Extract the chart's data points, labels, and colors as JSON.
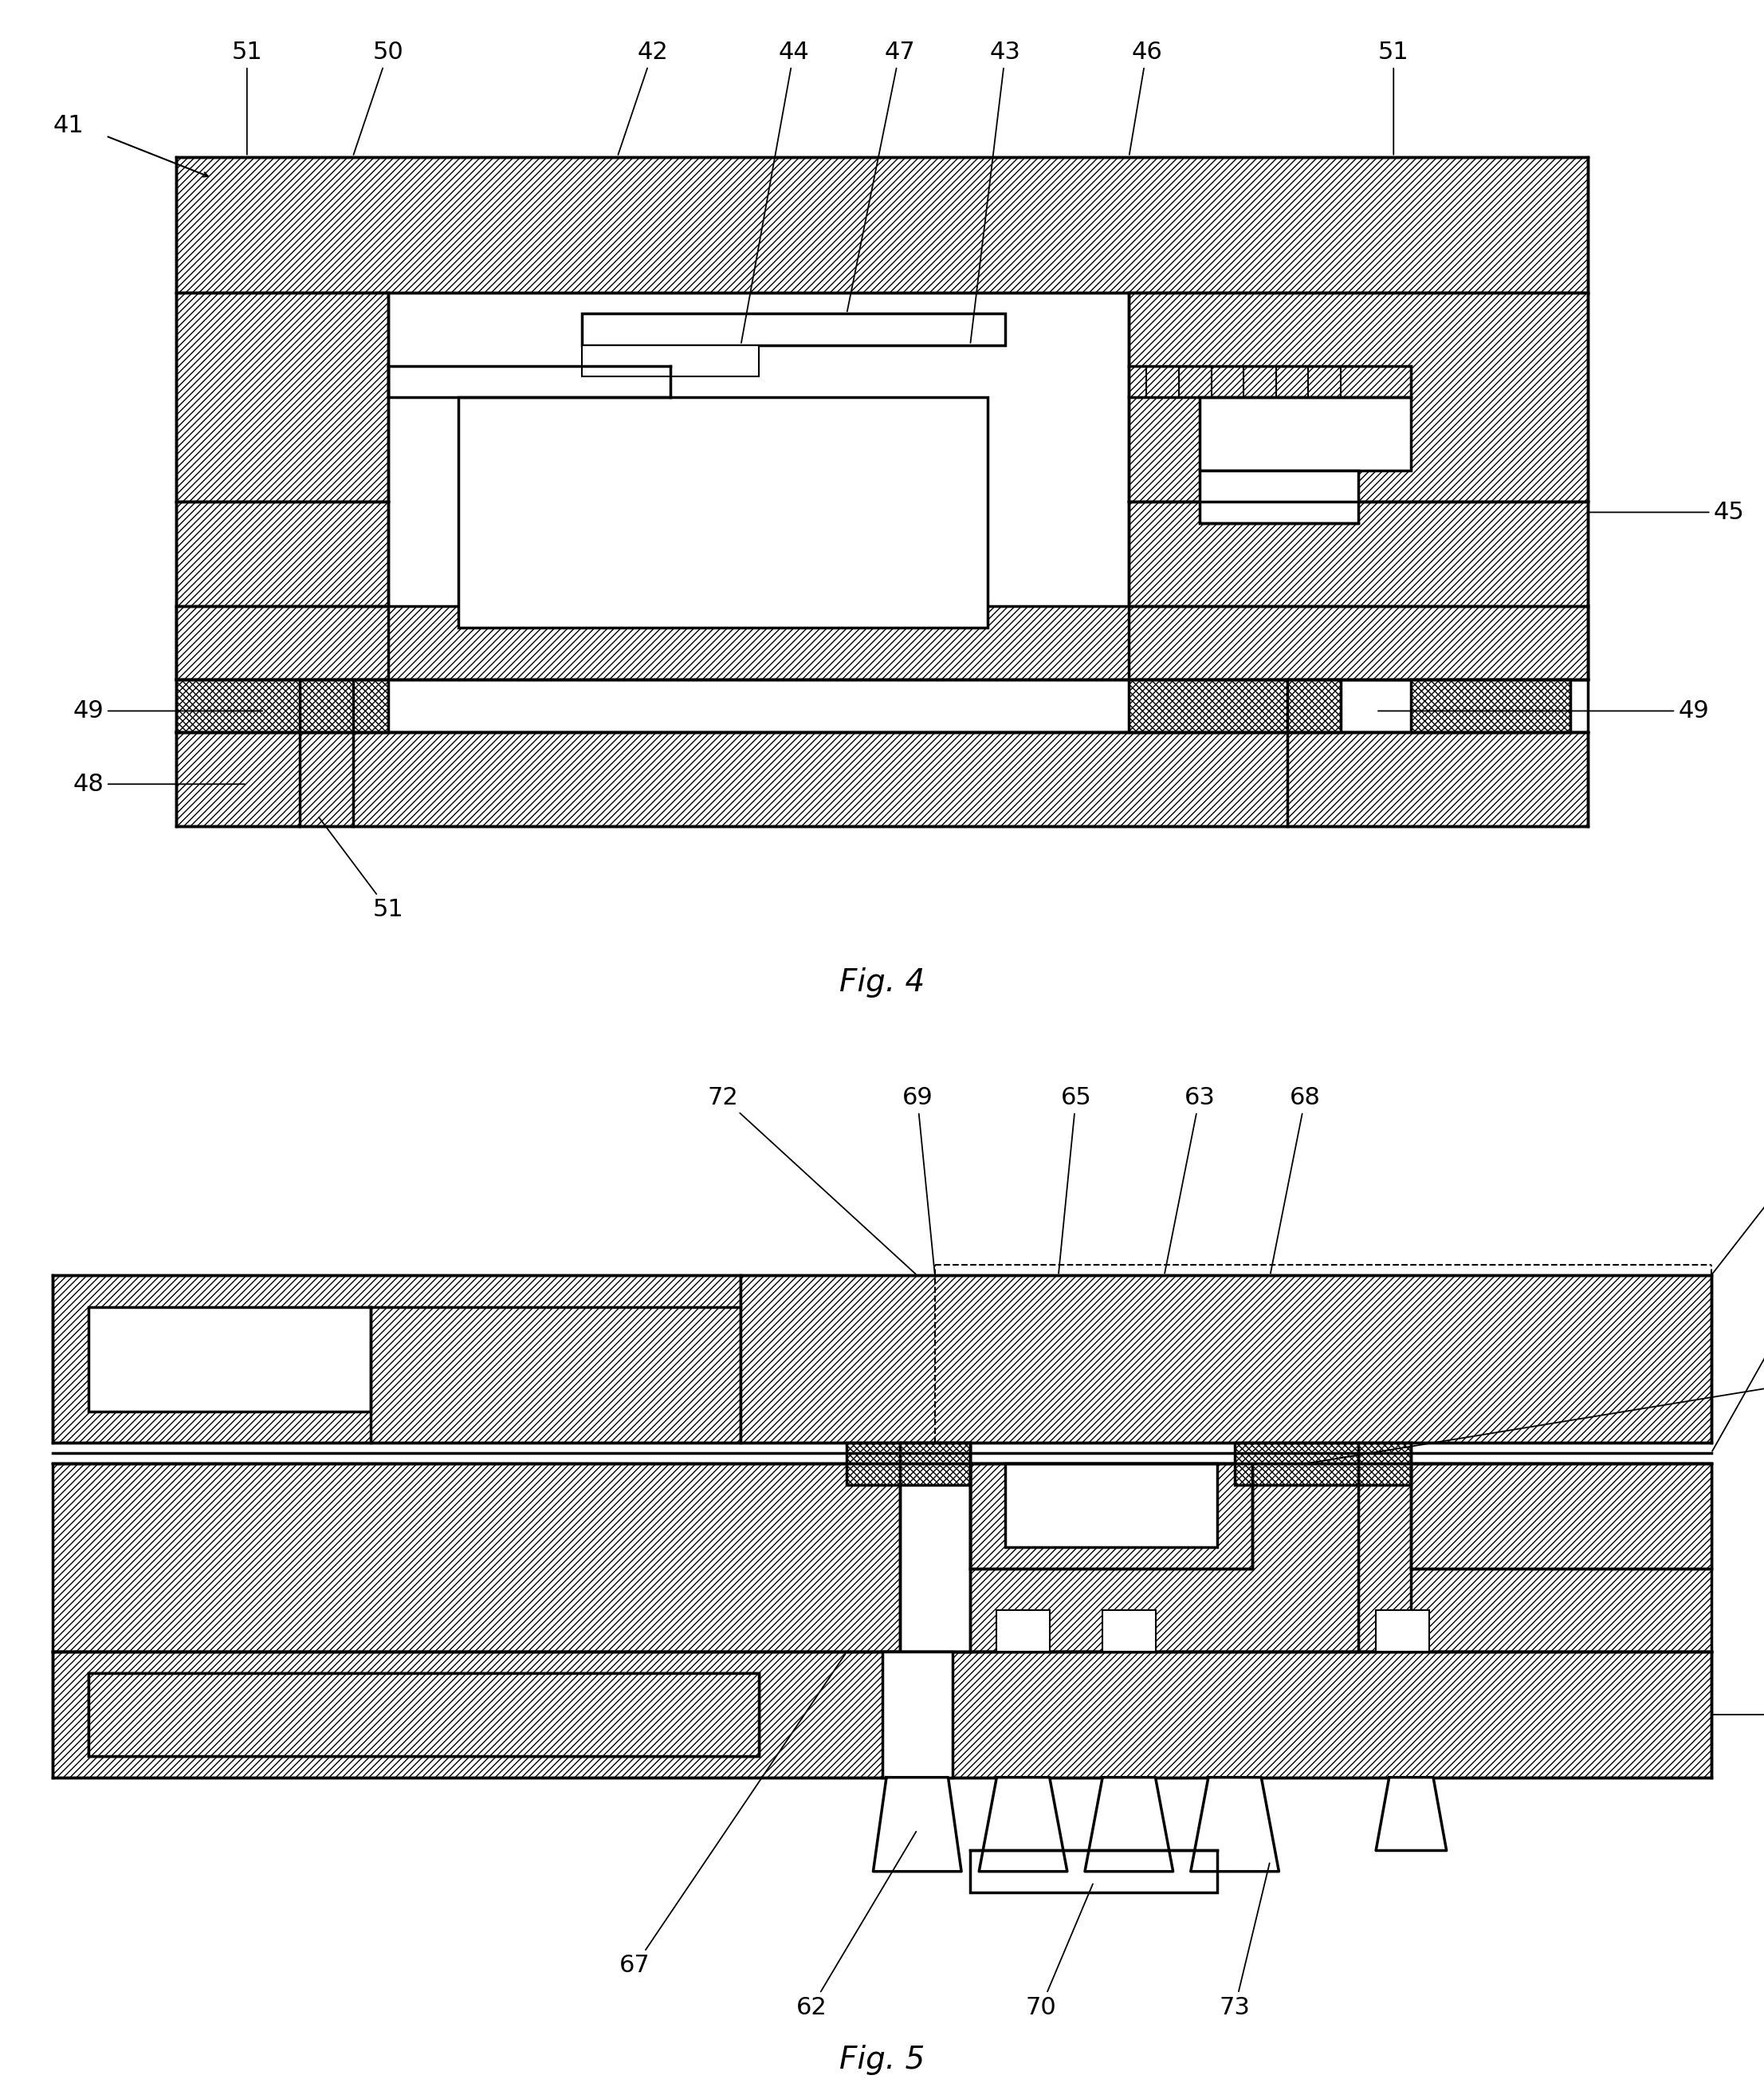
{
  "bg": "#ffffff",
  "lw_main": 2.5,
  "lw_thin": 1.5,
  "hatch_diag": "////",
  "hatch_cross": "xxxx",
  "fig4_title": "Fig. 4",
  "fig5_title": "Fig. 5",
  "fontsize_label": 22,
  "fontsize_title": 28
}
